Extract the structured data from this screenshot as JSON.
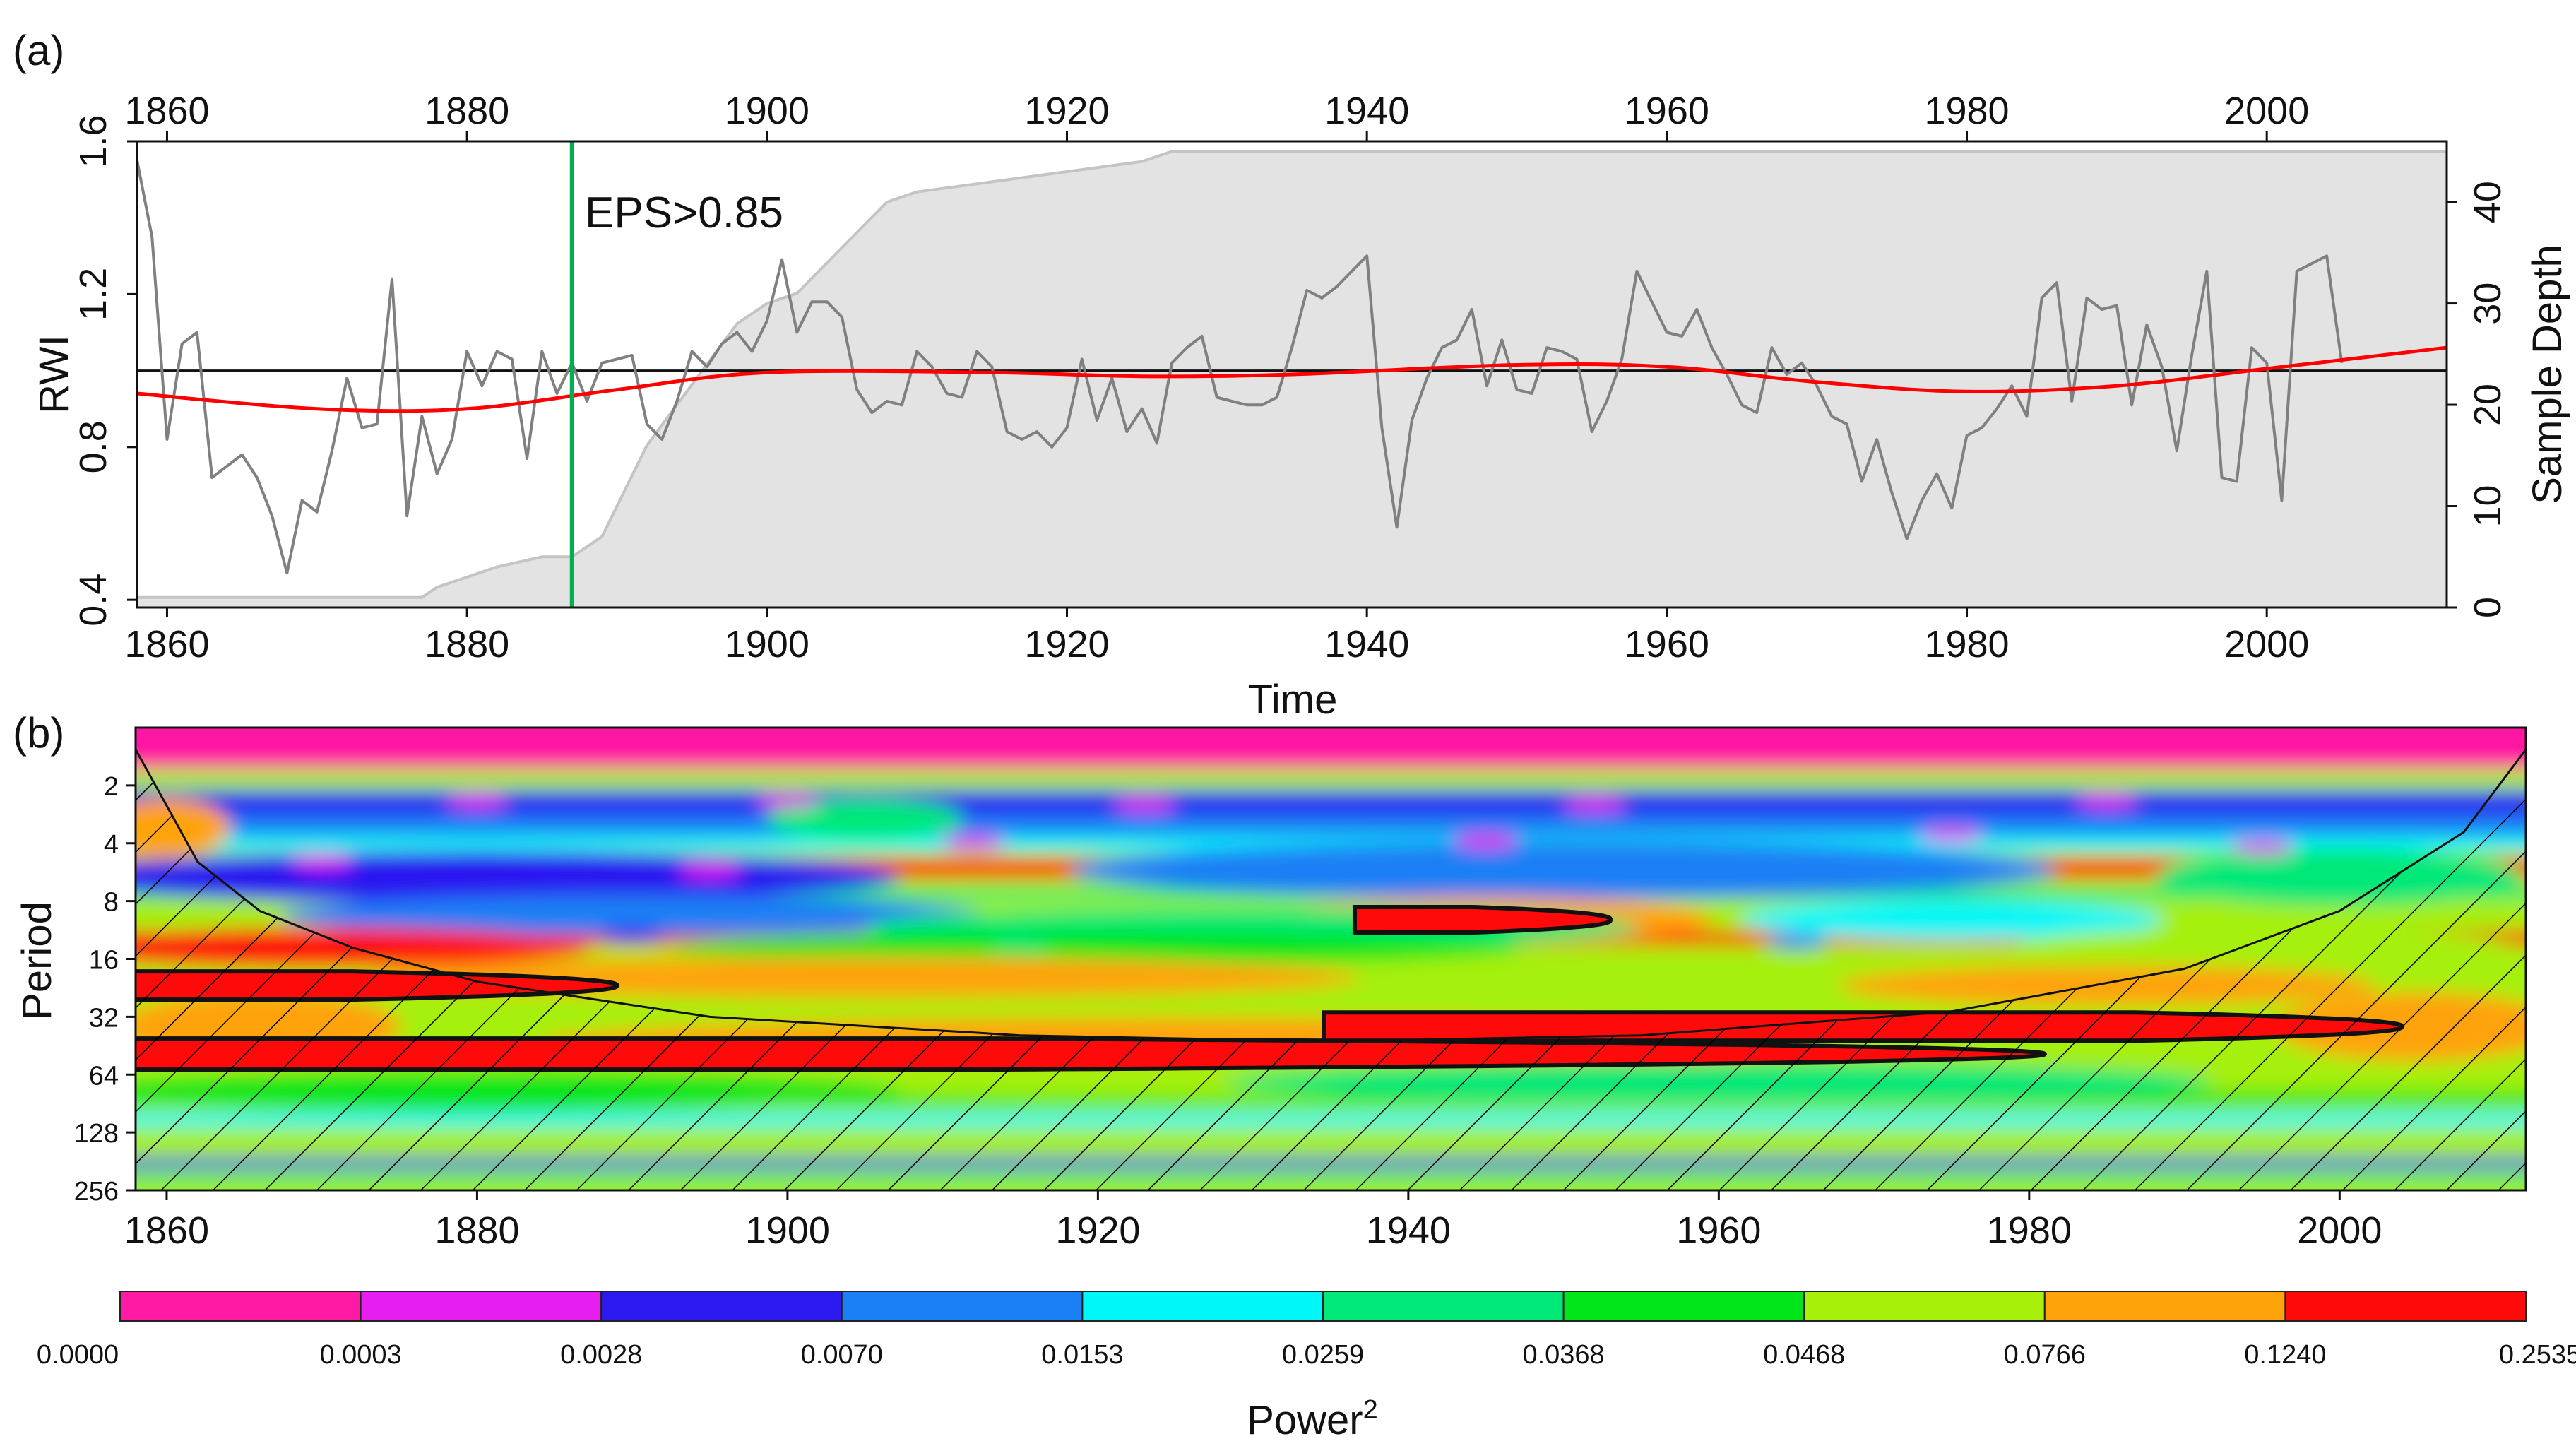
{
  "chart_data": [
    {
      "id": "panel-a",
      "type": "line",
      "panel_label": "(a)",
      "xlabel": "Time",
      "ylabel": "RWI",
      "y2label": "Sample Depth",
      "xlim": [
        1858,
        2012
      ],
      "ylim": [
        0.38,
        1.6
      ],
      "y2lim": [
        0,
        46
      ],
      "x_ticks": [
        "1860",
        "1880",
        "1900",
        "1920",
        "1940",
        "1960",
        "1980",
        "2000"
      ],
      "y_ticks": [
        "0.4",
        "0.8",
        "1.2",
        "1.6"
      ],
      "y2_ticks": [
        "0",
        "10",
        "20",
        "30",
        "40"
      ],
      "reference_line_y": 1.0,
      "eps_line": {
        "x": 1887,
        "label": "EPS>0.85"
      },
      "colors": {
        "rwi": "#808080",
        "smooth": "#ff0000",
        "eps": "#00b050",
        "depth_fill": "#e3e3e3",
        "depth_line": "#c4c4c4"
      },
      "series": [
        {
          "name": "RWI",
          "x_start": 1858,
          "values": [
            1.55,
            1.35,
            0.82,
            1.07,
            1.1,
            0.72,
            0.75,
            0.78,
            0.72,
            0.62,
            0.47,
            0.66,
            0.63,
            0.79,
            0.98,
            0.85,
            0.86,
            1.24,
            0.62,
            0.88,
            0.73,
            0.82,
            1.05,
            0.96,
            1.05,
            1.03,
            0.77,
            1.05,
            0.94,
            1.02,
            0.92,
            1.02,
            1.03,
            1.04,
            0.86,
            0.82,
            0.92,
            1.05,
            1.01,
            1.07,
            1.1,
            1.05,
            1.13,
            1.29,
            1.1,
            1.18,
            1.18,
            1.14,
            0.95,
            0.89,
            0.92,
            0.91,
            1.05,
            1.01,
            0.94,
            0.93,
            1.05,
            1.01,
            0.84,
            0.82,
            0.84,
            0.8,
            0.85,
            1.03,
            0.87,
            0.98,
            0.84,
            0.9,
            0.81,
            1.02,
            1.06,
            1.09,
            0.93,
            0.92,
            0.91,
            0.91,
            0.93,
            1.06,
            1.21,
            1.19,
            1.22,
            1.26,
            1.3,
            0.85,
            0.59,
            0.87,
            0.98,
            1.06,
            1.08,
            1.16,
            0.96,
            1.08,
            0.95,
            0.94,
            1.06,
            1.05,
            1.03,
            0.84,
            0.92,
            1.03,
            1.26,
            1.18,
            1.1,
            1.09,
            1.16,
            1.06,
            0.99,
            0.91,
            0.89,
            1.06,
            0.99,
            1.02,
            0.96,
            0.88,
            0.86,
            0.71,
            0.82,
            0.68,
            0.56,
            0.66,
            0.73,
            0.64,
            0.83,
            0.85,
            0.9,
            0.96,
            0.88,
            1.19,
            1.23,
            0.92,
            1.19,
            1.16,
            1.17,
            0.91,
            1.12,
            1.01,
            0.79,
            1.04,
            1.26,
            0.72,
            0.71,
            1.06,
            1.02,
            0.66,
            1.26,
            1.28,
            1.3,
            1.02
          ]
        },
        {
          "name": "Smoothed trend",
          "x": [
            1858,
            1870,
            1880,
            1890,
            1900,
            1915,
            1925,
            1935,
            1950,
            1960,
            1970,
            1980,
            1990,
            2000,
            2012
          ],
          "values": [
            0.94,
            0.9,
            0.9,
            0.95,
            0.995,
            0.995,
            0.985,
            0.99,
            1.015,
            1.01,
            0.97,
            0.945,
            0.96,
            1.005,
            1.06
          ]
        },
        {
          "name": "Sample Depth",
          "axis": "right",
          "x": [
            1858,
            1877,
            1878,
            1880,
            1882,
            1885,
            1887,
            1889,
            1890,
            1892,
            1894,
            1896,
            1898,
            1900,
            1902,
            1904,
            1906,
            1908,
            1910,
            1915,
            1920,
            1925,
            1927,
            1930,
            1940,
            1960,
            1980,
            2000,
            2012
          ],
          "values": [
            1,
            1,
            2,
            3,
            4,
            5,
            5,
            7,
            10,
            16,
            20,
            24,
            28,
            30,
            31,
            34,
            37,
            40,
            41,
            42,
            43,
            44,
            45,
            45,
            45,
            45,
            45,
            45,
            45
          ]
        }
      ]
    },
    {
      "id": "panel-b",
      "type": "heatmap",
      "panel_label": "(b)",
      "ylabel": "Period",
      "xlim": [
        1858,
        2012
      ],
      "x_ticks": [
        "1860",
        "1880",
        "1900",
        "1920",
        "1940",
        "1960",
        "1980",
        "2000"
      ],
      "y_ticks": [
        "2",
        "4",
        "8",
        "16",
        "32",
        "64",
        "128",
        "256"
      ],
      "y_scale": "log2",
      "ylim": [
        1,
        256
      ],
      "significant_regions": [
        {
          "x": [
            1858,
            1889
          ],
          "period": 22
        },
        {
          "x": [
            1858,
            1981
          ],
          "period": 50
        },
        {
          "x": [
            1935,
            2004
          ],
          "period": 36
        },
        {
          "x": [
            1937,
            1953
          ],
          "period": 10
        }
      ]
    },
    {
      "id": "colorbar",
      "type": "legend",
      "title": "Power",
      "title_superscript": "2",
      "breaks": [
        "0.0000",
        "0.0003",
        "0.0028",
        "0.0070",
        "0.0153",
        "0.0259",
        "0.0368",
        "0.0468",
        "0.0766",
        "0.1240",
        "0.2535"
      ],
      "colors": [
        "#ff19a3",
        "#e61ef0",
        "#2b19f0",
        "#1b7ff5",
        "#00f7f7",
        "#00e878",
        "#00e61a",
        "#a6f00a",
        "#ffa30a",
        "#ff0a0a"
      ]
    }
  ]
}
